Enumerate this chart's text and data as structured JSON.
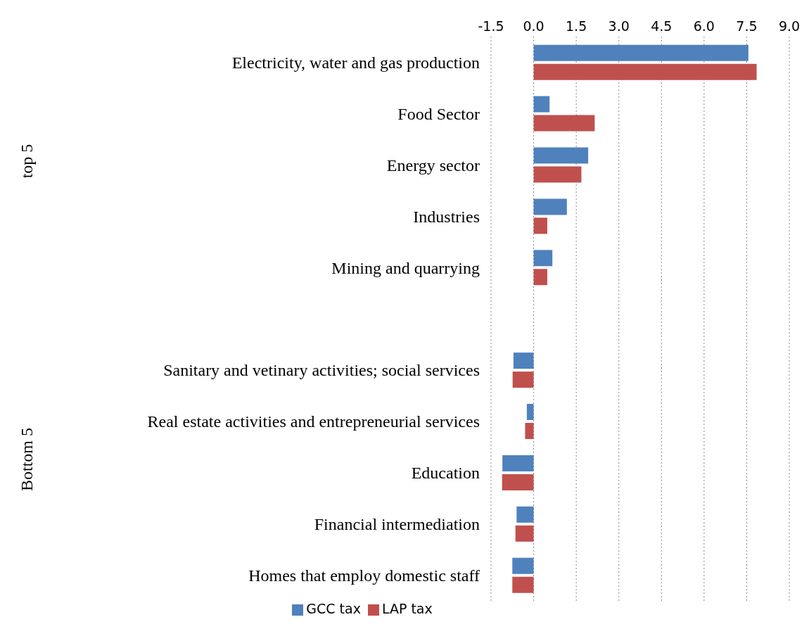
{
  "chart_data": {
    "type": "bar",
    "orientation": "horizontal",
    "categories": [
      "Electricity, water and gas production",
      "Food Sector",
      "Energy sector",
      "Industries",
      "Mining and quarrying",
      null,
      "Sanitary and vetinary activities; social services",
      "Real estate activities and entrepreneurial services",
      "Education",
      "Financial intermediation",
      "Homes that employ domestic staff"
    ],
    "series": [
      {
        "name": "GCC tax",
        "color": "#4f81bd",
        "values": [
          7.56,
          0.56,
          1.92,
          1.17,
          0.66,
          null,
          -0.71,
          -0.24,
          -1.1,
          -0.6,
          -0.75
        ]
      },
      {
        "name": "LAP tax",
        "color": "#c0504d",
        "values": [
          7.85,
          2.15,
          1.68,
          0.48,
          0.48,
          null,
          -0.74,
          -0.3,
          -1.11,
          -0.64,
          -0.75
        ]
      }
    ],
    "xlim": [
      -1.5,
      9.0
    ],
    "xticks": [
      -1.5,
      {
        "value": 0,
        "label": "0.0"
      },
      1.5,
      {
        "value": 3,
        "label": "3.0"
      },
      4.5,
      {
        "value": 6,
        "label": "6.0"
      },
      7.5,
      {
        "value": 9,
        "label": "9.0"
      }
    ],
    "grid": "x",
    "legend": "bottom",
    "annotations": [
      "top 5",
      "Bottom 5"
    ]
  }
}
